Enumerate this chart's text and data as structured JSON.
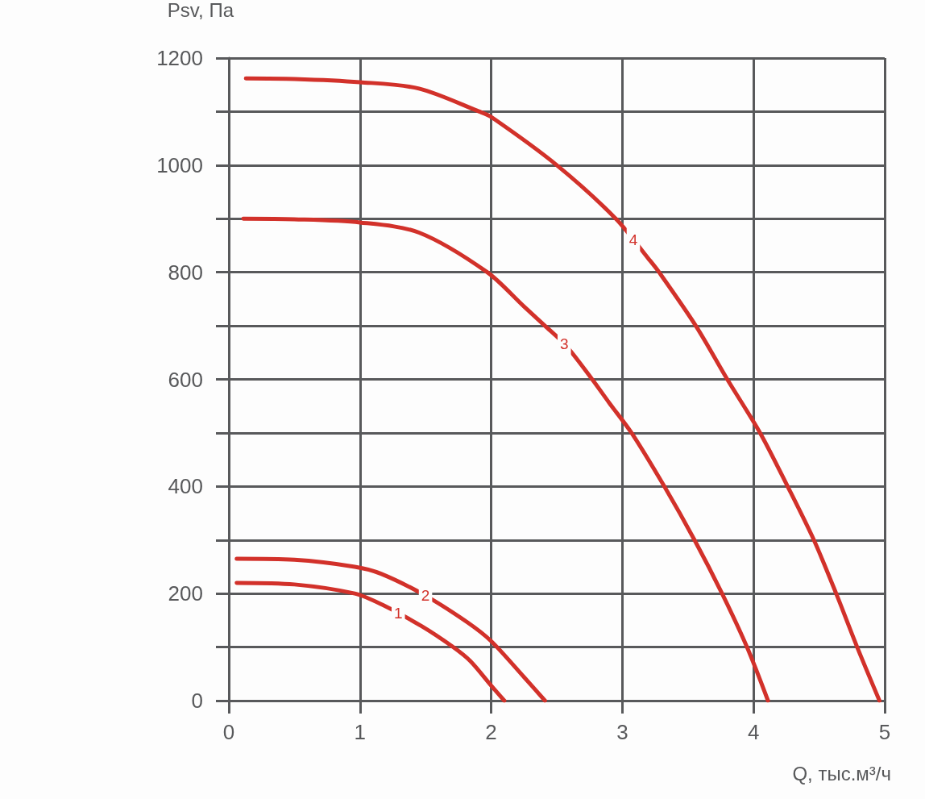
{
  "chart_data": {
    "type": "line",
    "xlabel": "Q, тыс.м³/ч",
    "ylabel": "Psv, Па",
    "xlim": [
      0,
      5
    ],
    "xticks": [
      0,
      1,
      2,
      3,
      4,
      5
    ],
    "ylim": [
      0,
      1200
    ],
    "yticks": [
      0,
      {
        "value": 100,
        "label": null
      },
      200,
      {
        "value": 300,
        "label": null
      },
      400,
      {
        "value": 500,
        "label": null
      },
      600,
      {
        "value": 700,
        "label": null
      },
      800,
      {
        "value": 900,
        "label": null
      },
      1000,
      {
        "value": 1100,
        "label": null
      },
      1200
    ],
    "grid": true,
    "line_style": "solid",
    "series": [
      {
        "name": "1",
        "color": "#d2312a",
        "x": [
          0.06,
          0.5,
          0.96,
          1.17,
          1.47,
          1.71,
          1.84,
          2.0,
          2.1
        ],
        "values": [
          220,
          217,
          200,
          179,
          139,
          100,
          74,
          28,
          0
        ]
      },
      {
        "name": "2",
        "color": "#d2312a",
        "x": [
          0.06,
          0.5,
          0.96,
          1.16,
          1.5,
          1.82,
          2.0,
          2.25,
          2.41
        ],
        "values": [
          265,
          263,
          250,
          237,
          196,
          146,
          111,
          44,
          0
        ]
      },
      {
        "name": "3",
        "color": "#d2312a",
        "x": [
          0.11,
          0.5,
          1,
          1.45,
          1.97,
          2.25,
          2.41,
          2.57,
          2.77,
          2.9,
          3.07,
          3.32,
          3.55,
          3.76,
          3.95,
          4.11
        ],
        "values": [
          900,
          899,
          893,
          874,
          800,
          736,
          700,
          663,
          600,
          556,
          500,
          400,
          300,
          200,
          100,
          0
        ]
      },
      {
        "name": "4",
        "color": "#d2312a",
        "x": [
          0.13,
          0.5,
          1,
          1.45,
          1.91,
          2.0,
          2.5,
          2.95,
          3.2,
          3.28,
          3.56,
          3.8,
          4.05,
          4.26,
          4.46,
          4.63,
          4.79,
          4.96
        ],
        "values": [
          1162,
          1161,
          1155,
          1143,
          1100,
          1090,
          1000,
          900,
          825,
          800,
          700,
          600,
          500,
          400,
          300,
          200,
          100,
          0
        ]
      }
    ]
  }
}
